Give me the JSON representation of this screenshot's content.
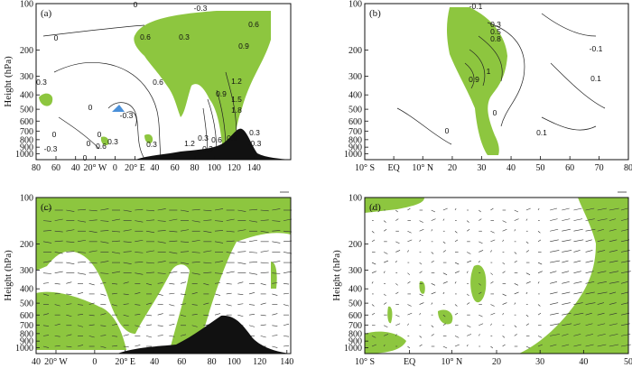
{
  "colors": {
    "shade": "#8dc63f",
    "terrain": "#111111",
    "blue": "#4a90d9",
    "contour": "#222222",
    "vector": "#333333"
  },
  "chart_data": [
    {
      "panel": "(a)",
      "type": "contour",
      "ylabel": "Height (hPa)",
      "y_ticks": [
        "100",
        "200",
        "300",
        "400",
        "500",
        "600",
        "700",
        "800",
        "900",
        "1000"
      ],
      "x_ticks": [
        "80",
        "60",
        "40",
        "20° W",
        "0",
        "20° E",
        "40",
        "60",
        "80",
        "100",
        "120",
        "140"
      ],
      "contour_labels": [
        "0",
        "0",
        "-0.3",
        "0.6",
        "0.9",
        "0.6",
        "0.3",
        "0",
        "0.3",
        "0.6",
        "0.9",
        "1.2",
        "1.5",
        "1.8",
        "0.3",
        "0",
        "0",
        "-0.3",
        "0",
        "0.6",
        "0.3",
        "1.2",
        "0.3",
        "0.6",
        "0.3",
        "0.9",
        "0.3",
        "-0.3",
        "0",
        "-0.3"
      ],
      "shading": "positive values shaded green",
      "terrain": true
    },
    {
      "panel": "(b)",
      "type": "contour",
      "y_ticks": [
        "100",
        "200",
        "300",
        "400",
        "500",
        "600",
        "700",
        "800",
        "900",
        "1000"
      ],
      "x_ticks": [
        "10° S",
        "EQ",
        "10° N",
        "20",
        "30",
        "40",
        "50",
        "60",
        "70",
        "80"
      ],
      "contour_labels": [
        "-0.1",
        "0.3",
        "0.5",
        "0.8",
        "1",
        "0.9",
        "-0.1",
        "0.1",
        "0",
        "0",
        "0.1"
      ],
      "shading": "positive values shaded green"
    },
    {
      "panel": "(c)",
      "type": "vector",
      "ylabel": "Height (hPa)",
      "y_ticks": [
        "100",
        "200",
        "300",
        "400",
        "500",
        "600",
        "700",
        "800",
        "900",
        "1000"
      ],
      "x_ticks": [
        "40",
        "20° W",
        "0",
        "20° E",
        "40",
        "60",
        "80",
        "100",
        "120",
        "140"
      ],
      "shading": "green",
      "terrain": true,
      "reference_vector": true
    },
    {
      "panel": "(d)",
      "type": "vector",
      "ylabel": "Height (hPa)",
      "y_ticks": [
        "100",
        "200",
        "300",
        "400",
        "500",
        "600",
        "700",
        "800",
        "900",
        "1000"
      ],
      "x_ticks": [
        "10° S",
        "EQ",
        "10° N",
        "20",
        "30",
        "40",
        "50"
      ],
      "shading": "green",
      "reference_vector": true
    }
  ]
}
